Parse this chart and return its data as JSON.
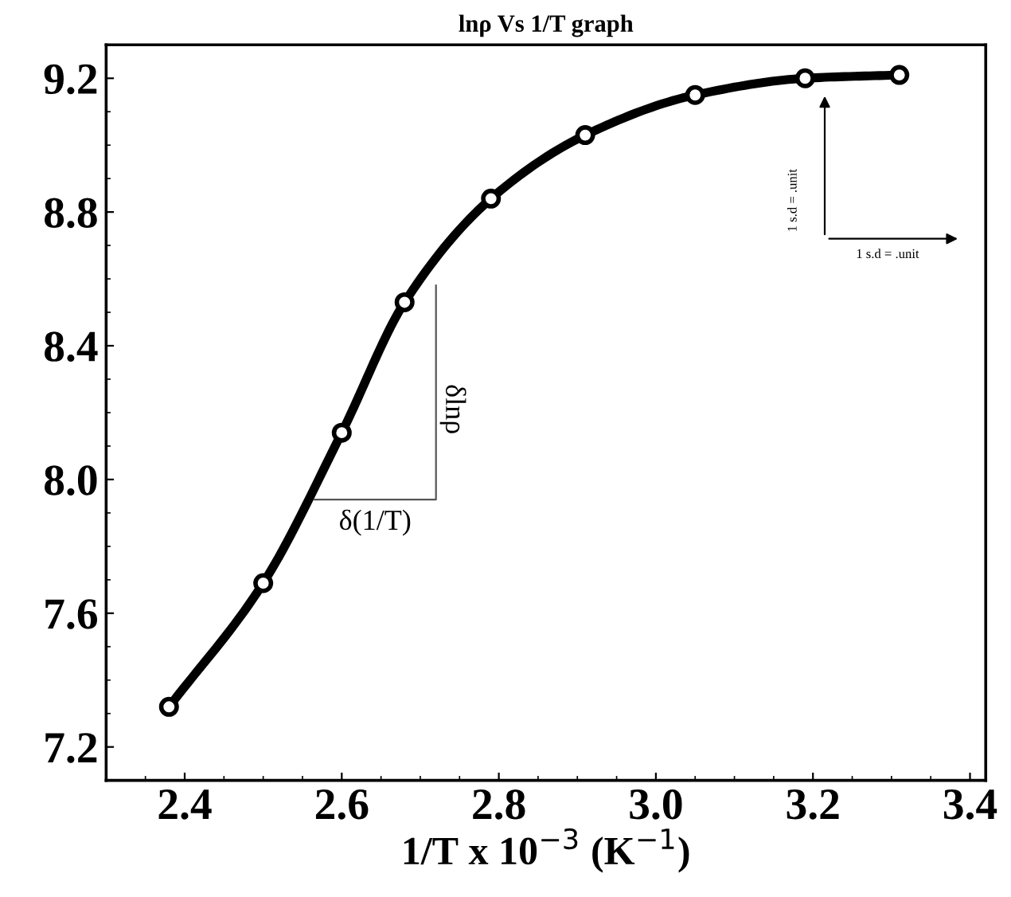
{
  "chart_data": {
    "type": "line",
    "title": "lnρ Vs 1/T graph",
    "xlabel": "1/T x 10$^{−3}$ (K$^{−1}$)",
    "x": [
      2.38,
      2.5,
      2.6,
      2.68,
      2.79,
      2.91,
      3.05,
      3.19,
      3.31
    ],
    "series": [
      {
        "color": "#000000",
        "values": [
          7.32,
          7.69,
          8.14,
          8.53,
          8.84,
          9.03,
          9.15,
          9.2,
          9.21
        ]
      }
    ],
    "marker": "circle",
    "line_style": "solid",
    "xlim": [
      2.3,
      3.42
    ],
    "ylim": [
      7.1,
      9.3
    ],
    "xticks": [
      2.4,
      2.6,
      2.8,
      {
        "value": 3.0,
        "label": "3.0"
      },
      3.2,
      3.4
    ],
    "yticks": [
      7.2,
      7.6,
      {
        "value": 8.0,
        "label": "8.0"
      },
      8.4,
      8.8,
      9.2
    ],
    "annotations": [
      "δ(1/T)",
      "δlnρ",
      "1 s.d = .unit",
      "1 s.d = .unit"
    ]
  }
}
